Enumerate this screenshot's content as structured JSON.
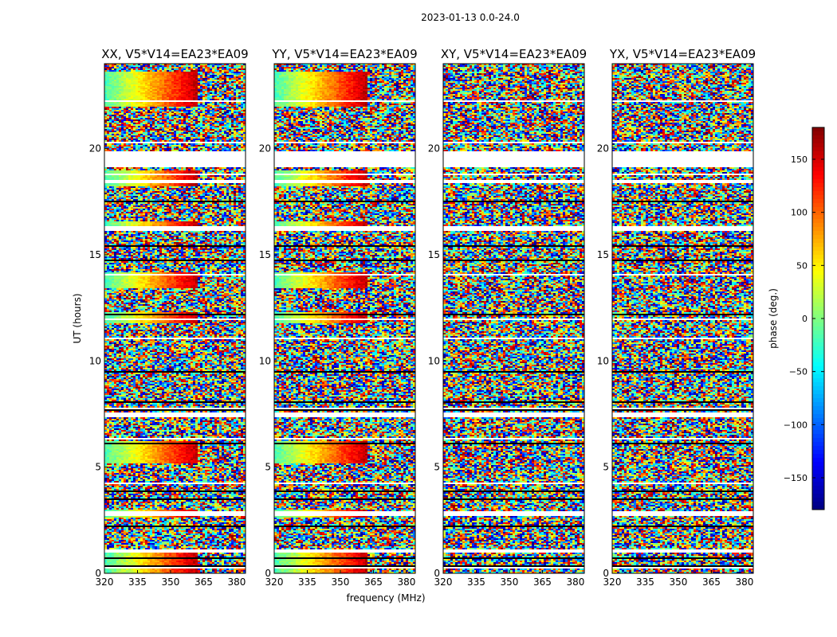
{
  "figure_title": "2023-01-13 0.0-24.0",
  "chart_data": {
    "type": "heatmap",
    "title": "2023-01-13 0.0-24.0",
    "xlabel": "frequency (MHz)",
    "ylabel": "UT (hours)",
    "xlim": [
      320,
      384
    ],
    "ylim": [
      0,
      24
    ],
    "xticks": [
      320,
      335,
      350,
      365,
      380
    ],
    "yticks": [
      0,
      5,
      10,
      15,
      20
    ],
    "colorbar": {
      "label": "phase (deg.)",
      "range": [
        -180,
        180
      ],
      "ticks": [
        -150,
        -100,
        -50,
        0,
        50,
        100,
        150
      ],
      "colormap": "jet"
    },
    "panels": [
      {
        "title": "XX, V5*V14=EA23*EA09",
        "coherent_gradient": true,
        "gradient_end_mhz": 362
      },
      {
        "title": "YY, V5*V14=EA23*EA09",
        "coherent_gradient": true,
        "gradient_end_mhz": 362
      },
      {
        "title": "XY, V5*V14=EA23*EA09",
        "coherent_gradient": false
      },
      {
        "title": "YX, V5*V14=EA23*EA09",
        "coherent_gradient": false
      }
    ],
    "flagged_intervals_hours": [
      [
        0.98,
        1.1
      ],
      [
        2.7,
        2.95
      ],
      [
        7.35,
        7.6
      ],
      [
        7.75,
        7.8
      ],
      [
        12.05,
        12.1
      ],
      [
        14.05,
        14.1
      ],
      [
        16.2,
        16.3
      ],
      [
        18.35,
        18.5
      ],
      [
        18.75,
        18.8
      ],
      [
        19.15,
        19.9
      ],
      [
        21.35,
        21.4
      ],
      [
        22.2,
        22.3
      ],
      [
        23.0,
        23.05
      ]
    ]
  }
}
